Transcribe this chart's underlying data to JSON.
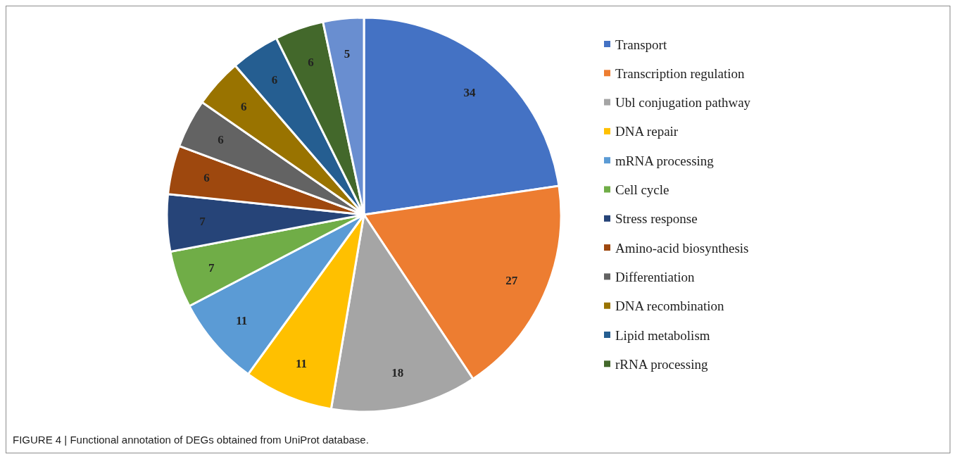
{
  "chart_data": {
    "type": "pie",
    "categories": [
      "Transport",
      "Transcription regulation",
      "Ubl conjugation pathway",
      "DNA repair",
      "mRNA processing",
      "Cell cycle",
      "Stress response",
      "Amino-acid biosynthesis",
      "Differentiation",
      "DNA recombination",
      "Lipid metabolism",
      "rRNA processing",
      null
    ],
    "values": [
      34,
      27,
      18,
      11,
      11,
      7,
      7,
      6,
      6,
      6,
      6,
      6,
      5
    ],
    "colors": [
      "#4472c4",
      "#ed7d31",
      "#a5a5a5",
      "#ffc000",
      "#5b9bd5",
      "#70ad47",
      "#264478",
      "#9e480e",
      "#636363",
      "#997300",
      "#255e91",
      "#43682b",
      "#698ed0"
    ],
    "data_labels": true,
    "legend": "right",
    "annotations": [
      "FIGURE 4 | Functional annotation of DEGs obtained from UniProt database."
    ]
  }
}
